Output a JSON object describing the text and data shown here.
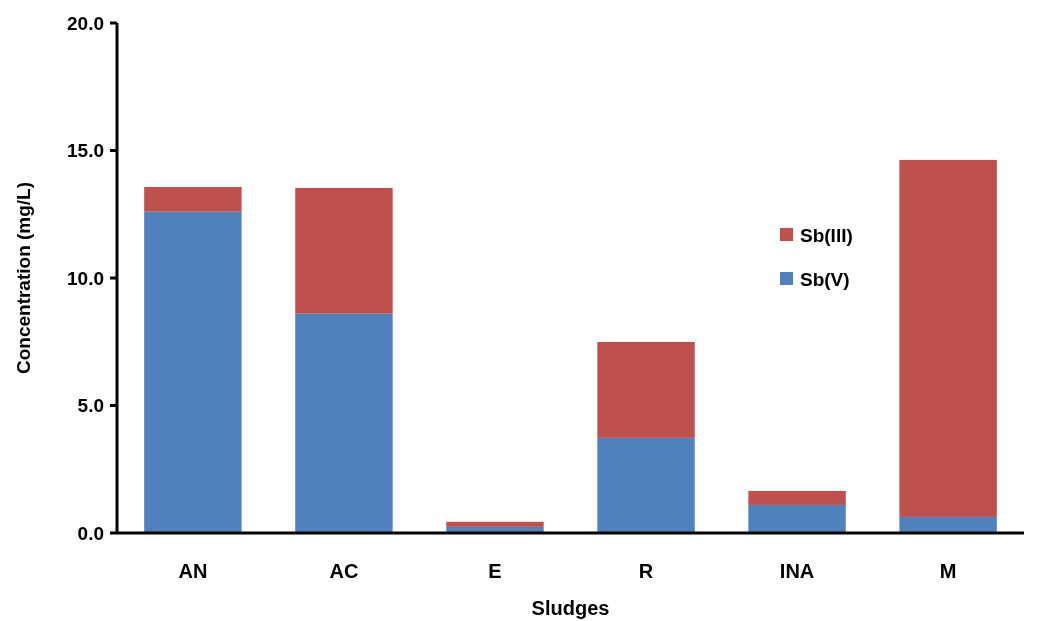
{
  "chart_data": {
    "type": "bar",
    "stacked": true,
    "xlabel": "Sludges",
    "ylabel": "Concentration (mg/L)",
    "categories": [
      "AN",
      "AC",
      "E",
      "R",
      "INA",
      "M"
    ],
    "series": [
      {
        "name": "Sb(V)",
        "color": "#4f81bd",
        "values": [
          12.6,
          8.6,
          0.24,
          3.73,
          1.1,
          0.63
        ]
      },
      {
        "name": "Sb(III)",
        "color": "#c0504d",
        "values": [
          0.97,
          4.93,
          0.2,
          3.76,
          0.55,
          14.0
        ]
      }
    ],
    "ylim": [
      0,
      20
    ],
    "yticks": [
      {
        "value": 0,
        "label": "0.0"
      },
      {
        "value": 5,
        "label": "5.0"
      },
      {
        "value": 10,
        "label": "10.0"
      },
      {
        "value": 15,
        "label": "15.0"
      },
      {
        "value": 20,
        "label": "20.0"
      }
    ],
    "legend": "right",
    "grid": false
  }
}
